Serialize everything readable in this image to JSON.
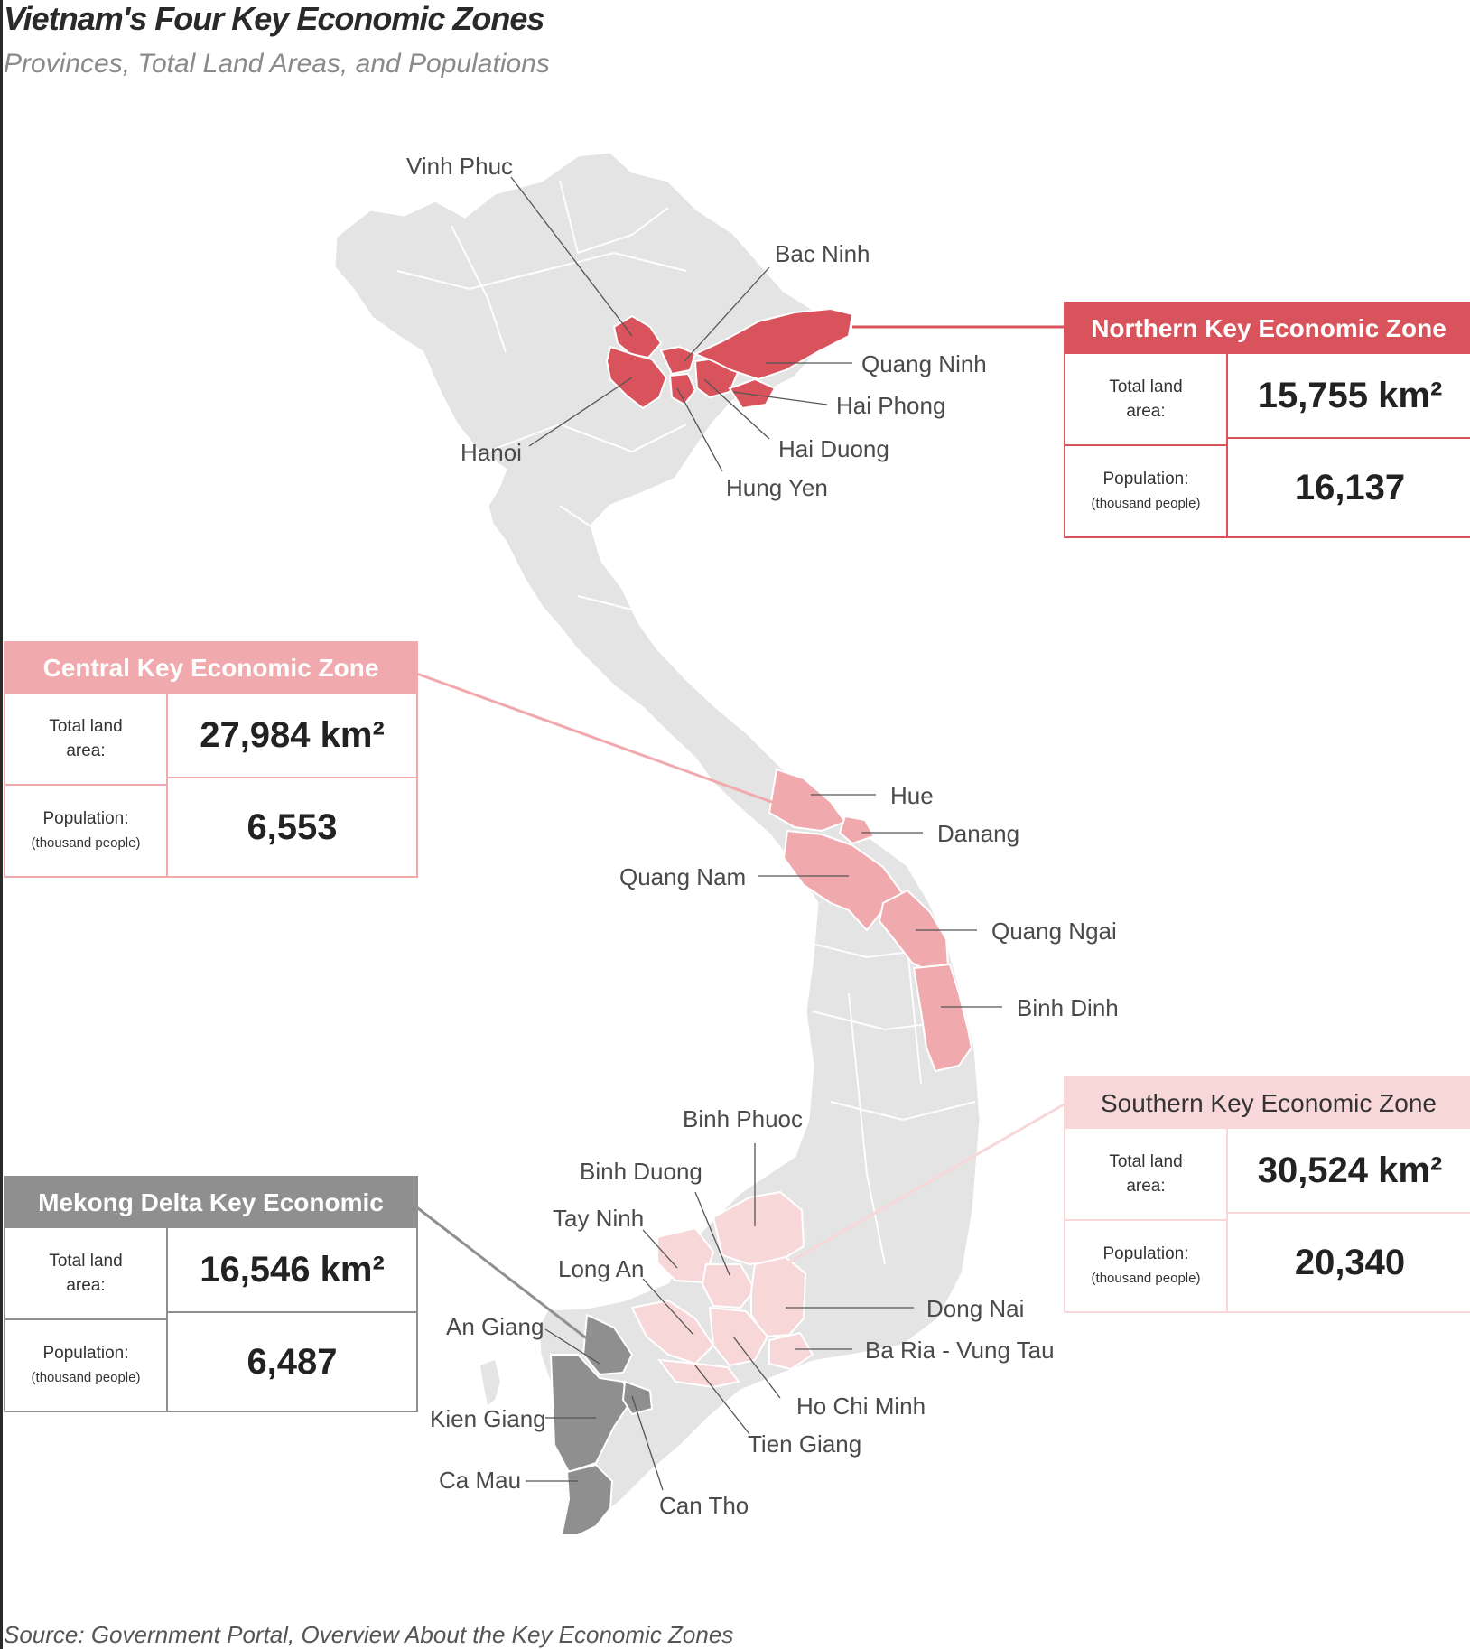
{
  "title": "Vietnam's Four Key Economic Zones",
  "subtitle": "Provinces, Total Land Areas, and Populations",
  "source": "Source: Government Portal, Overview About the Key Economic Zones",
  "colors": {
    "northern": "#d9535c",
    "central": "#f0a9ad",
    "southern": "#f8d7d9",
    "mekong": "#8f8f8f",
    "land": "#e4e4e4",
    "border": "#ffffff"
  },
  "zones": {
    "northern": {
      "name": "Northern Key Economic Zone",
      "area_label": "Total land area:",
      "area": "15,755 km²",
      "pop_label": "Population:",
      "pop_unit": "(thousand people)",
      "pop": "16,137"
    },
    "central": {
      "name": "Central Key Economic Zone",
      "area_label": "Total land area:",
      "area": "27,984 km²",
      "pop_label": "Population:",
      "pop_unit": "(thousand people)",
      "pop": "6,553"
    },
    "southern": {
      "name": "Southern Key Economic Zone",
      "area_label": "Total land area:",
      "area": "30,524 km²",
      "pop_label": "Population:",
      "pop_unit": "(thousand people)",
      "pop": "20,340"
    },
    "mekong": {
      "name": "Mekong Delta Key Economic Zone",
      "area_label": "Total land area:",
      "area": "16,546 km²",
      "pop_label": "Population:",
      "pop_unit": "(thousand people)",
      "pop": "6,487"
    }
  },
  "provinces": {
    "vinh_phuc": "Vinh Phuc",
    "bac_ninh": "Bac Ninh",
    "quang_ninh": "Quang Ninh",
    "hai_phong": "Hai Phong",
    "hai_duong": "Hai Duong",
    "hung_yen": "Hung Yen",
    "hanoi": "Hanoi",
    "hue": "Hue",
    "danang": "Danang",
    "quang_nam": "Quang Nam",
    "quang_ngai": "Quang Ngai",
    "binh_dinh": "Binh Dinh",
    "binh_phuoc": "Binh Phuoc",
    "binh_duong": "Binh Duong",
    "tay_ninh": "Tay Ninh",
    "long_an": "Long An",
    "dong_nai": "Dong Nai",
    "ba_ria": "Ba Ria - Vung Tau",
    "hcm": "Ho Chi Minh",
    "tien_giang": "Tien Giang",
    "an_giang": "An Giang",
    "kien_giang": "Kien Giang",
    "ca_mau": "Ca Mau",
    "can_tho": "Can Tho"
  }
}
